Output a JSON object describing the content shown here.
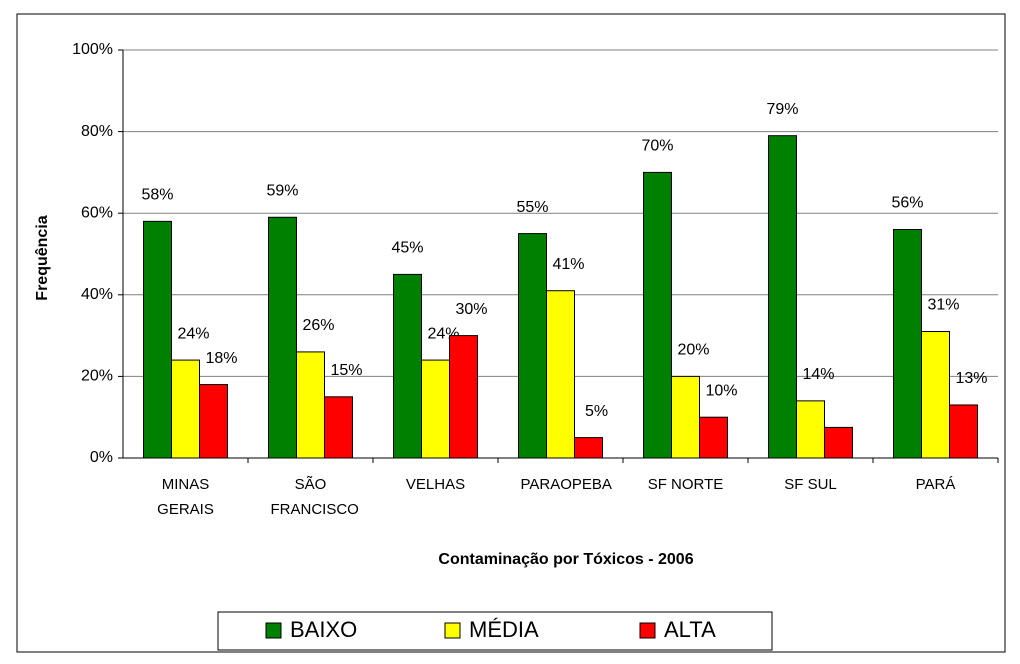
{
  "chart_data": {
    "type": "bar",
    "x_label": "Contaminação por Tóxicos - 2006",
    "y_label": "Frequência",
    "categories": [
      "MINAS GERAIS",
      "SÃO FRANCISCO",
      "VELHAS",
      "PARAOPEBA",
      "SF NORTE",
      "SF SUL",
      "PARÁ"
    ],
    "series": [
      {
        "name": "BAIXO",
        "color": "#008000",
        "values": [
          58,
          59,
          45,
          55,
          70,
          79,
          56
        ],
        "value_labels": [
          "58%",
          "59%",
          "45%",
          "55%",
          "70%",
          "79%",
          "56%"
        ]
      },
      {
        "name": "MÉDIA",
        "color": "#ffff00",
        "values": [
          24,
          26,
          24,
          41,
          20,
          14,
          31
        ],
        "value_labels": [
          "24%",
          "26%",
          "24%",
          "41%",
          "20%",
          "14%",
          "31%"
        ]
      },
      {
        "name": "ALTA",
        "color": "#ff0000",
        "values": [
          18,
          15,
          30,
          5,
          10,
          7.5,
          13
        ],
        "value_labels": [
          "18%",
          "15%",
          "30%",
          "5%",
          "10%",
          null,
          "13%"
        ]
      }
    ],
    "ylim": [
      0,
      100
    ],
    "yticks": [
      {
        "value": 0,
        "label": "0%"
      },
      {
        "value": 20,
        "label": "20%"
      },
      {
        "value": 40,
        "label": "40%"
      },
      {
        "value": 60,
        "label": "60%"
      },
      {
        "value": 80,
        "label": "80%"
      },
      {
        "value": 100,
        "label": "100%"
      }
    ],
    "grid": true,
    "legend": "bottom"
  }
}
